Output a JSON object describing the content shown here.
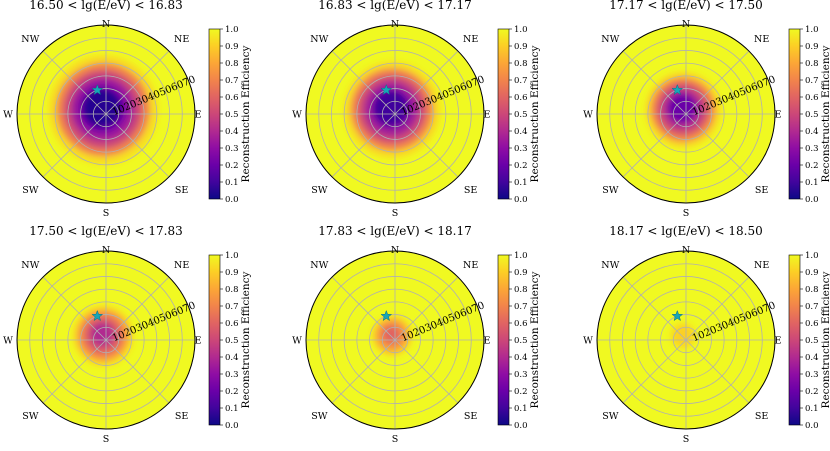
{
  "figure": {
    "panel_count": 6
  },
  "chart_data": {
    "type": "heatmap",
    "projection": "polar",
    "grid": true,
    "colormap": "plasma",
    "directions": [
      "N",
      "NE",
      "E",
      "SE",
      "S",
      "SW",
      "W",
      "NW"
    ],
    "radial_ticks": [
      "10",
      "20",
      "30",
      "40",
      "50",
      "60",
      "70"
    ],
    "radial_range": [
      0,
      70
    ],
    "colorbar": {
      "label": "Reconstruction Efficiency",
      "range": [
        0.0,
        1.0
      ],
      "ticks": [
        "0.0",
        "0.1",
        "0.2",
        "0.3",
        "0.4",
        "0.5",
        "0.6",
        "0.7",
        "0.8",
        "0.9",
        "1.0"
      ]
    },
    "marker": {
      "shape": "star",
      "color": "#17a6b8",
      "zenith_deg": 20,
      "direction": "NNW"
    },
    "panels": [
      {
        "title": "16.50 < lg(E/eV) < 16.83",
        "low_eff_radius_deg": 43,
        "min_efficiency": 0.05
      },
      {
        "title": "16.83 < lg(E/eV) < 17.17",
        "low_eff_radius_deg": 38,
        "min_efficiency": 0.1
      },
      {
        "title": "17.17 < lg(E/eV) < 17.50",
        "low_eff_radius_deg": 30,
        "min_efficiency": 0.2
      },
      {
        "title": "17.50 < lg(E/eV) < 17.83",
        "low_eff_radius_deg": 24,
        "min_efficiency": 0.4
      },
      {
        "title": "17.83 < lg(E/eV) < 18.17",
        "low_eff_radius_deg": 16,
        "min_efficiency": 0.6
      },
      {
        "title": "18.17 < lg(E/eV) < 18.50",
        "low_eff_radius_deg": 10,
        "min_efficiency": 0.9
      }
    ]
  }
}
